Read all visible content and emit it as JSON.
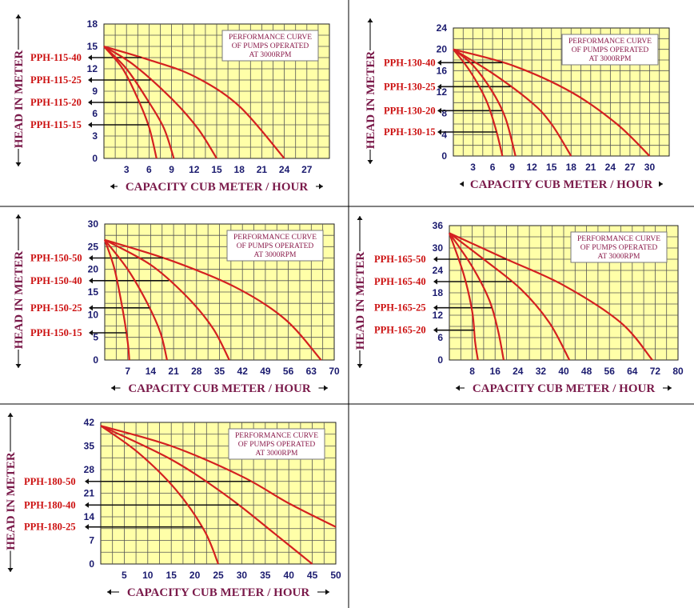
{
  "note_lines": [
    "PERFORMANCE CURVE",
    "OF PUMPS OPERATED",
    "AT  3000RPM"
  ],
  "xlabel": "CAPACITY CUB METER / HOUR",
  "ylabel": "HEAD IN METER",
  "colors": {
    "plot_bg": "#ffffa8",
    "curve": "#d42020",
    "tick": "#1a1a6e",
    "axis_title": "#7a1a4a",
    "model_label": "#cc1010"
  },
  "chart_data": [
    {
      "type": "line",
      "title": "",
      "xlim": [
        0,
        30
      ],
      "ylim": [
        0,
        18
      ],
      "xticks": [
        3,
        6,
        9,
        12,
        15,
        18,
        21,
        24,
        27
      ],
      "xtick_labels": [
        "3",
        "6",
        "9",
        "12",
        "15",
        "18",
        "21",
        "24",
        "27"
      ],
      "yticks": [
        0,
        3,
        6,
        9,
        12,
        15,
        18
      ],
      "ytick_labels": [
        "0",
        "3",
        "6",
        "9",
        "12",
        "15",
        "18"
      ],
      "series": [
        {
          "name": "PPH-115-40",
          "points": [
            [
              0,
              15
            ],
            [
              6,
              13.2
            ],
            [
              12,
              11
            ],
            [
              18,
              7
            ],
            [
              24,
              0
            ]
          ],
          "label_y": 13.5
        },
        {
          "name": "PPH-115-25",
          "points": [
            [
              0,
              15
            ],
            [
              4,
              12.5
            ],
            [
              9,
              8
            ],
            [
              12.5,
              4
            ],
            [
              15,
              0
            ]
          ],
          "label_y": 10.5
        },
        {
          "name": "PPH-115-20",
          "points": [
            [
              0,
              15
            ],
            [
              3,
              12
            ],
            [
              6,
              7.5
            ],
            [
              8,
              4
            ],
            [
              9.3,
              0
            ]
          ],
          "label_y": 7.5
        },
        {
          "name": "PPH-115-15",
          "points": [
            [
              0,
              15
            ],
            [
              2.5,
              12
            ],
            [
              4.5,
              8
            ],
            [
              6,
              4.2
            ],
            [
              7,
              0
            ]
          ],
          "label_y": 4.5
        }
      ]
    },
    {
      "type": "line",
      "title": "",
      "xlim": [
        0,
        33
      ],
      "ylim": [
        0,
        24
      ],
      "xticks": [
        3,
        6,
        9,
        12,
        15,
        18,
        21,
        24,
        27,
        30
      ],
      "xtick_labels": [
        "3",
        "6",
        "9",
        "12",
        "15",
        "18",
        "21",
        "24",
        "27",
        "30"
      ],
      "yticks": [
        0,
        4,
        8,
        12,
        16,
        20,
        24
      ],
      "ytick_labels": [
        "0",
        "4",
        "8",
        "12",
        "16",
        "20",
        "24"
      ],
      "series": [
        {
          "name": "PPH-130-40",
          "points": [
            [
              0,
              20
            ],
            [
              9,
              17
            ],
            [
              18,
              12
            ],
            [
              25,
              6
            ],
            [
              30,
              0
            ]
          ],
          "label_y": 17.5
        },
        {
          "name": "PPH-130-25",
          "points": [
            [
              0,
              20
            ],
            [
              6,
              15.5
            ],
            [
              12,
              10
            ],
            [
              15,
              6
            ],
            [
              18,
              0
            ]
          ],
          "label_y": 13
        },
        {
          "name": "PPH-130-20",
          "points": [
            [
              0,
              20
            ],
            [
              3,
              17
            ],
            [
              6,
              12
            ],
            [
              8,
              7
            ],
            [
              9.5,
              0
            ]
          ],
          "label_y": 8.5
        },
        {
          "name": "PPH-130-15",
          "points": [
            [
              0,
              20
            ],
            [
              2.5,
              16
            ],
            [
              5,
              10.5
            ],
            [
              6.5,
              5
            ],
            [
              7.5,
              0
            ]
          ],
          "label_y": 4.5
        }
      ]
    },
    {
      "type": "line",
      "title": "",
      "xlim": [
        0,
        70
      ],
      "ylim": [
        0,
        30
      ],
      "xticks": [
        7,
        14,
        21,
        28,
        35,
        42,
        49,
        56,
        63,
        70
      ],
      "xtick_labels": [
        "7",
        "14",
        "21",
        "28",
        "35",
        "42",
        "49",
        "56",
        "63",
        "70"
      ],
      "yticks": [
        0,
        5,
        10,
        15,
        20,
        25,
        30
      ],
      "ytick_labels": [
        "0",
        "5",
        "10",
        "15",
        "20",
        "25",
        "30"
      ],
      "series": [
        {
          "name": "PPH-150-50",
          "points": [
            [
              0,
              26.5
            ],
            [
              20,
              22
            ],
            [
              40,
              16
            ],
            [
              55,
              9
            ],
            [
              66,
              0
            ]
          ],
          "label_y": 22.5
        },
        {
          "name": "PPH-150-40",
          "points": [
            [
              0,
              26.5
            ],
            [
              14,
              21
            ],
            [
              25,
              14
            ],
            [
              33,
              7
            ],
            [
              38,
              0
            ]
          ],
          "label_y": 17.5
        },
        {
          "name": "PPH-150-25",
          "points": [
            [
              0,
              26.5
            ],
            [
              7,
              20
            ],
            [
              13,
              12.5
            ],
            [
              17,
              6
            ],
            [
              19,
              0
            ]
          ],
          "label_y": 11.5
        },
        {
          "name": "PPH-150-15",
          "points": [
            [
              0,
              26.5
            ],
            [
              3,
              20
            ],
            [
              5.5,
              11
            ],
            [
              7,
              4
            ],
            [
              7.5,
              0
            ]
          ],
          "label_y": 6
        }
      ]
    },
    {
      "type": "line",
      "title": "",
      "xlim": [
        0,
        80
      ],
      "ylim": [
        0,
        36
      ],
      "xticks": [
        8,
        16,
        24,
        32,
        40,
        48,
        56,
        64,
        72,
        80
      ],
      "xtick_labels": [
        "8",
        "16",
        "24",
        "32",
        "40",
        "48",
        "56",
        "64",
        "72",
        "80"
      ],
      "yticks": [
        0,
        6,
        12,
        18,
        24,
        30,
        36
      ],
      "ytick_labels": [
        "0",
        "6",
        "12",
        "18",
        "24",
        "30",
        "36"
      ],
      "series": [
        {
          "name": "PPH-165-50",
          "points": [
            [
              0,
              34
            ],
            [
              20,
              27
            ],
            [
              40,
              20
            ],
            [
              60,
              10
            ],
            [
              71,
              0
            ]
          ],
          "label_y": 27
        },
        {
          "name": "PPH-165-40",
          "points": [
            [
              0,
              34
            ],
            [
              12,
              27
            ],
            [
              25,
              19
            ],
            [
              35,
              10
            ],
            [
              42,
              0
            ]
          ],
          "label_y": 21
        },
        {
          "name": "PPH-165-25",
          "points": [
            [
              0,
              34
            ],
            [
              8,
              25
            ],
            [
              14,
              16
            ],
            [
              17,
              8
            ],
            [
              19,
              0
            ]
          ],
          "label_y": 14
        },
        {
          "name": "PPH-165-20",
          "points": [
            [
              0,
              34
            ],
            [
              5,
              23
            ],
            [
              8,
              13
            ],
            [
              9,
              5
            ],
            [
              10,
              0
            ]
          ],
          "label_y": 8
        }
      ]
    },
    {
      "type": "line",
      "title": "",
      "xlim": [
        0,
        50
      ],
      "ylim": [
        0,
        42
      ],
      "xticks": [
        5,
        10,
        15,
        20,
        25,
        30,
        35,
        40,
        45,
        50
      ],
      "xtick_labels": [
        "5",
        "10",
        "15",
        "20",
        "25",
        "30",
        "35",
        "40",
        "45",
        "50"
      ],
      "yticks": [
        0,
        7,
        14,
        21,
        28,
        35,
        42
      ],
      "ytick_labels": [
        "0",
        "7",
        "14",
        "21",
        "28",
        "35",
        "42"
      ],
      "series": [
        {
          "name": "PPH-180-50",
          "points": [
            [
              0,
              41
            ],
            [
              15,
              35
            ],
            [
              30,
              26
            ],
            [
              40,
              18
            ],
            [
              50,
              11
            ]
          ],
          "label_y": 24.5
        },
        {
          "name": "PPH-180-40",
          "points": [
            [
              0,
              41
            ],
            [
              15,
              31
            ],
            [
              27,
              20
            ],
            [
              37,
              9
            ],
            [
              45,
              0
            ]
          ],
          "label_y": 17.5
        },
        {
          "name": "PPH-180-25",
          "points": [
            [
              0,
              41
            ],
            [
              8,
              33
            ],
            [
              16,
              22
            ],
            [
              22,
              10
            ],
            [
              25,
              0
            ]
          ],
          "label_y": 11
        }
      ]
    }
  ]
}
